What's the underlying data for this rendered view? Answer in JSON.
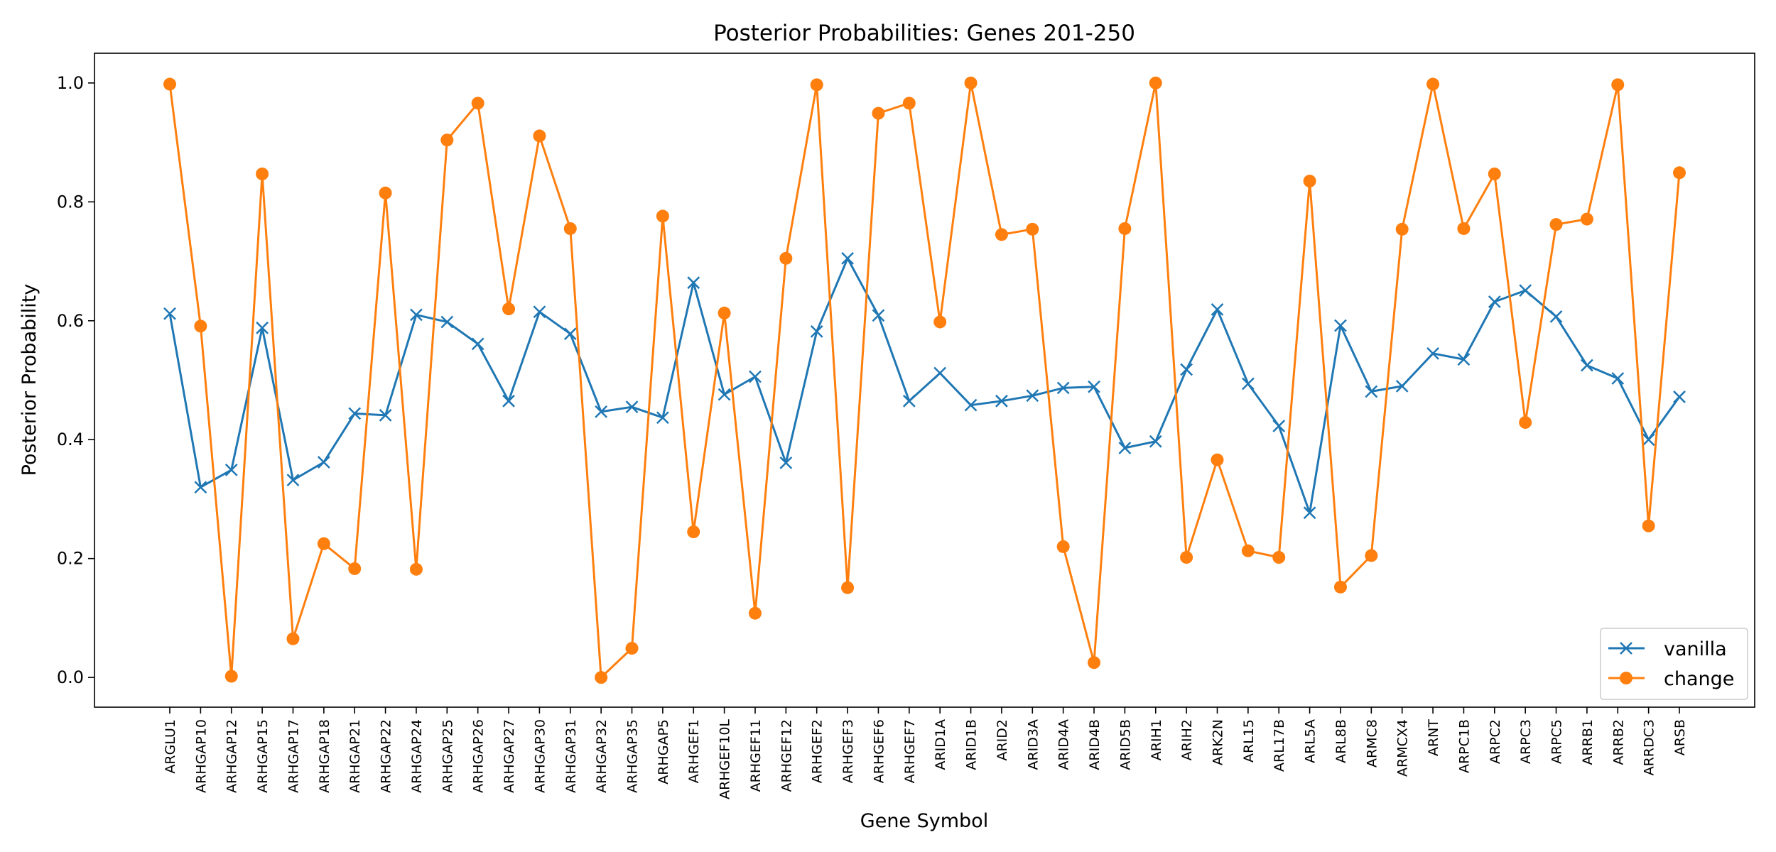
{
  "chart_data": {
    "type": "line",
    "title": "Posterior Probabilities: Genes 201-250",
    "xlabel": "Gene Symbol",
    "ylabel": "Posterior Probability",
    "ylim": [
      -0.05,
      1.05
    ],
    "yticks": [
      "0.0",
      "0.2",
      "0.4",
      "0.6",
      "0.8",
      "1.0"
    ],
    "grid": false,
    "legend_position": "lower-right",
    "categories": [
      "ARGLU1",
      "ARHGAP10",
      "ARHGAP12",
      "ARHGAP15",
      "ARHGAP17",
      "ARHGAP18",
      "ARHGAP21",
      "ARHGAP22",
      "ARHGAP24",
      "ARHGAP25",
      "ARHGAP26",
      "ARHGAP27",
      "ARHGAP30",
      "ARHGAP31",
      "ARHGAP32",
      "ARHGAP35",
      "ARHGAP5",
      "ARHGEF1",
      "ARHGEF10L",
      "ARHGEF11",
      "ARHGEF12",
      "ARHGEF2",
      "ARHGEF3",
      "ARHGEF6",
      "ARHGEF7",
      "ARID1A",
      "ARID1B",
      "ARID2",
      "ARID3A",
      "ARID4A",
      "ARID4B",
      "ARID5B",
      "ARIH1",
      "ARIH2",
      "ARK2N",
      "ARL15",
      "ARL17B",
      "ARL5A",
      "ARL8B",
      "ARMC8",
      "ARMCX4",
      "ARNT",
      "ARPC1B",
      "ARPC2",
      "ARPC3",
      "ARPC5",
      "ARRB1",
      "ARRB2",
      "ARRDC3",
      "ARSB"
    ],
    "series": [
      {
        "name": "vanilla",
        "color": "#1f77b4",
        "marker": "x",
        "values": [
          0.612,
          0.32,
          0.349,
          0.588,
          0.332,
          0.362,
          0.444,
          0.441,
          0.61,
          0.598,
          0.561,
          0.465,
          0.615,
          0.578,
          0.447,
          0.455,
          0.437,
          0.664,
          0.476,
          0.506,
          0.361,
          0.582,
          0.705,
          0.609,
          0.465,
          0.512,
          0.458,
          0.465,
          0.474,
          0.487,
          0.489,
          0.386,
          0.397,
          0.518,
          0.619,
          0.494,
          0.423,
          0.277,
          0.592,
          0.481,
          0.49,
          0.545,
          0.535,
          0.632,
          0.651,
          0.607,
          0.525,
          0.503,
          0.4,
          0.472
        ]
      },
      {
        "name": "change",
        "color": "#ff7f0e",
        "marker": "o",
        "values": [
          0.998,
          0.591,
          0.002,
          0.847,
          0.065,
          0.225,
          0.183,
          0.815,
          0.182,
          0.904,
          0.966,
          0.62,
          0.911,
          0.755,
          0.0,
          0.049,
          0.776,
          0.245,
          0.613,
          0.108,
          0.705,
          0.997,
          0.151,
          0.949,
          0.966,
          0.598,
          1.0,
          0.745,
          0.754,
          0.22,
          0.025,
          0.755,
          1.0,
          0.202,
          0.366,
          0.213,
          0.202,
          0.835,
          0.152,
          0.205,
          0.754,
          0.998,
          0.755,
          0.847,
          0.429,
          0.762,
          0.771,
          0.997,
          0.255,
          0.849
        ]
      }
    ]
  }
}
